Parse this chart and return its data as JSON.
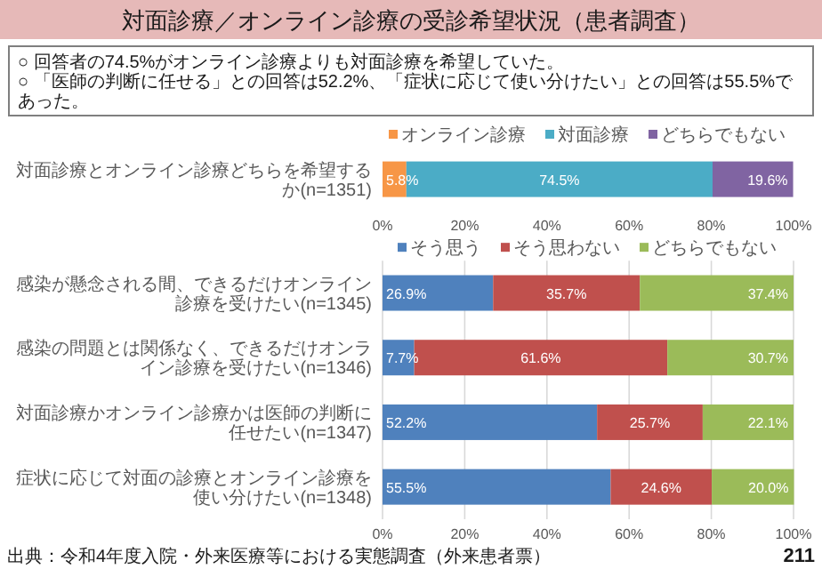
{
  "chart_data": [
    {
      "type": "bar",
      "orientation": "horizontal",
      "stacked": true,
      "title": "対面診療／オンライン診療の受診希望状況（患者調査）",
      "annotations": [
        "○ 回答者の74.5%がオンライン診療よりも対面診療を希望していた。",
        "○ 「医師の判断に任せる」との回答は52.2%、「症状に応じて使い分けたい」との回答は55.5%であった。"
      ],
      "categories": [
        "対面診療とオンライン診療どちらを希望するか(n=1351)"
      ],
      "series": [
        {
          "name": "オンライン診療",
          "color": "#f79646",
          "values": [
            5.8
          ],
          "value_labels": [
            "5.8%"
          ]
        },
        {
          "name": "対面診療",
          "color": "#4bacc6",
          "values": [
            74.5
          ],
          "value_labels": [
            "74.5%"
          ]
        },
        {
          "name": "どちらでもない",
          "color": "#8064a2",
          "values": [
            19.6
          ],
          "value_labels": [
            "19.6%"
          ]
        }
      ],
      "xlim": [
        0,
        100
      ],
      "xticks": [
        {
          "value": 0,
          "label": "0%"
        },
        {
          "value": 20,
          "label": "20%"
        },
        {
          "value": 40,
          "label": "40%"
        },
        {
          "value": 60,
          "label": "60%"
        },
        {
          "value": 80,
          "label": "80%"
        },
        {
          "value": 100,
          "label": "100%"
        }
      ],
      "legend": "top"
    },
    {
      "type": "bar",
      "orientation": "horizontal",
      "stacked": true,
      "annotations": [
        "出典：令和4年度入院・外来医療等における実態調査（外来患者票）",
        "211"
      ],
      "categories": [
        "感染が懸念される間、できるだけオンライン診療を受けたい(n=1345)",
        "感染の問題とは関係なく、できるだけオンライン診療を受けたい(n=1346)",
        "対面診療かオンライン診療かは医師の判断に任せたい(n=1347)",
        "症状に応じて対面の診療とオンライン診療を使い分けたい(n=1348)"
      ],
      "series": [
        {
          "name": "そう思う",
          "color": "#4f81bd",
          "values": [
            26.9,
            7.7,
            52.2,
            55.5
          ],
          "value_labels": [
            "26.9%",
            "7.7%",
            "52.2%",
            "55.5%"
          ]
        },
        {
          "name": "そう思わない",
          "color": "#c0504d",
          "values": [
            35.7,
            61.6,
            25.7,
            24.6
          ],
          "value_labels": [
            "35.7%",
            "61.6%",
            "25.7%",
            "24.6%"
          ]
        },
        {
          "name": "どちらでもない",
          "color": "#9bbb59",
          "values": [
            37.4,
            30.7,
            22.1,
            20.0
          ],
          "value_labels": [
            "37.4%",
            "30.7%",
            "22.1%",
            "20.0%"
          ]
        }
      ],
      "xlim": [
        0,
        100
      ],
      "xticks": [
        {
          "value": 0,
          "label": "0%"
        },
        {
          "value": 20,
          "label": "20%"
        },
        {
          "value": 40,
          "label": "40%"
        },
        {
          "value": 60,
          "label": "60%"
        },
        {
          "value": 80,
          "label": "80%"
        },
        {
          "value": 100,
          "label": "100%"
        }
      ],
      "legend": "top",
      "grid": "x"
    }
  ]
}
